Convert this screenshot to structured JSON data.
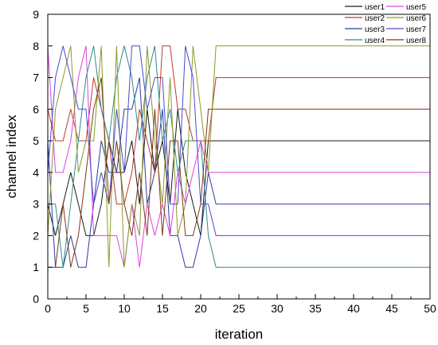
{
  "chart_data": {
    "type": "line",
    "title": "",
    "xlabel": "iteration",
    "ylabel": "channel index",
    "xlim": [
      0,
      50
    ],
    "ylim": [
      0,
      9
    ],
    "xticks": [
      0,
      5,
      10,
      15,
      20,
      25,
      30,
      35,
      40,
      45,
      50
    ],
    "yticks": [
      0,
      1,
      2,
      3,
      4,
      5,
      6,
      7,
      8,
      9
    ],
    "grid": false,
    "legend_placement": "top-right",
    "legend_order": [
      "user1",
      "user5",
      "user2",
      "user6",
      "user3",
      "user7",
      "user4",
      "user8"
    ],
    "series": [
      {
        "name": "user1",
        "color": "#1a1a1a",
        "x": [
          0,
          1,
          2,
          3,
          4,
          5,
          6,
          7,
          8,
          9,
          10,
          11,
          12,
          13,
          14,
          15,
          16,
          17,
          18,
          19,
          20,
          21,
          22,
          50
        ],
        "y": [
          3,
          2,
          3,
          4,
          3,
          2,
          2,
          3,
          5,
          4,
          4,
          5,
          3,
          6,
          4,
          5,
          3,
          6,
          4,
          3,
          2,
          5,
          5,
          5
        ]
      },
      {
        "name": "user2",
        "color": "#c0392b",
        "x": [
          0,
          1,
          2,
          3,
          4,
          5,
          6,
          7,
          8,
          9,
          10,
          11,
          12,
          13,
          14,
          15,
          16,
          17,
          18,
          19,
          20,
          21,
          22,
          50
        ],
        "y": [
          6,
          5,
          5,
          6,
          5,
          5,
          7,
          6,
          5,
          3,
          3,
          4,
          6,
          5,
          4,
          8,
          8,
          6,
          6,
          5,
          5,
          5,
          7,
          7
        ]
      },
      {
        "name": "user3",
        "color": "#2c3aa8",
        "x": [
          0,
          1,
          2,
          3,
          4,
          5,
          6,
          7,
          8,
          9,
          10,
          11,
          12,
          13,
          14,
          15,
          16,
          17,
          18,
          19,
          20,
          21,
          22,
          50
        ],
        "y": [
          5,
          1,
          1,
          2,
          1,
          1,
          3,
          5,
          4,
          4,
          6,
          6,
          7,
          3,
          4,
          6,
          2,
          2,
          1,
          1,
          2,
          4,
          3,
          3
        ]
      },
      {
        "name": "user4",
        "color": "#2e8b8b",
        "x": [
          0,
          1,
          2,
          3,
          4,
          5,
          6,
          7,
          8,
          9,
          10,
          11,
          12,
          13,
          14,
          15,
          16,
          17,
          18,
          19,
          20,
          21,
          22,
          50
        ],
        "y": [
          3,
          3,
          1,
          3,
          5,
          7,
          8,
          6,
          5,
          7,
          8,
          7,
          5,
          7,
          8,
          5,
          6,
          4,
          5,
          5,
          5,
          2,
          1,
          1
        ]
      },
      {
        "name": "user5",
        "color": "#e040e0",
        "x": [
          0,
          1,
          2,
          3,
          4,
          5,
          6,
          7,
          8,
          9,
          10,
          11,
          12,
          13,
          14,
          15,
          16,
          17,
          18,
          19,
          20,
          21,
          22,
          50
        ],
        "y": [
          8,
          4,
          4,
          5,
          7,
          8,
          2,
          2,
          2,
          2,
          1,
          3,
          1,
          3,
          2,
          3,
          2,
          4,
          3,
          4,
          5,
          4,
          4,
          4
        ]
      },
      {
        "name": "user6",
        "color": "#8a9a2a",
        "x": [
          0,
          1,
          2,
          3,
          4,
          5,
          6,
          7,
          8,
          9,
          10,
          11,
          12,
          13,
          14,
          15,
          16,
          17,
          18,
          19,
          20,
          21,
          22,
          50
        ],
        "y": [
          2,
          6,
          7,
          8,
          4,
          5,
          5,
          8,
          1,
          8,
          1,
          3,
          2,
          8,
          5,
          3,
          7,
          2,
          3,
          8,
          6,
          4,
          8,
          8
        ]
      },
      {
        "name": "user7",
        "color": "#4a4ad0",
        "x": [
          0,
          1,
          2,
          3,
          4,
          5,
          6,
          7,
          8,
          9,
          10,
          11,
          12,
          13,
          14,
          15,
          16,
          17,
          18,
          19,
          20,
          21,
          22,
          50
        ],
        "y": [
          4,
          7,
          8,
          7,
          6,
          6,
          3,
          4,
          3,
          6,
          4,
          8,
          8,
          6,
          7,
          7,
          3,
          3,
          8,
          7,
          3,
          3,
          2,
          2
        ]
      },
      {
        "name": "user8",
        "color": "#7a3a18",
        "x": [
          0,
          1,
          2,
          3,
          4,
          5,
          6,
          7,
          8,
          9,
          10,
          11,
          12,
          13,
          14,
          15,
          16,
          17,
          18,
          19,
          20,
          21,
          22,
          50
        ],
        "y": [
          1,
          1,
          3,
          1,
          2,
          4,
          6,
          7,
          3,
          5,
          3,
          2,
          4,
          2,
          6,
          2,
          5,
          5,
          2,
          2,
          3,
          6,
          6,
          6
        ]
      }
    ]
  }
}
